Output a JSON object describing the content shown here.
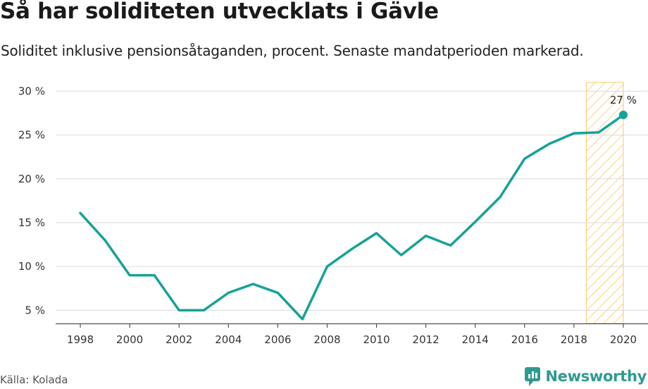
{
  "title": "Så har soliditeten utvecklats i Gävle",
  "subtitle": "Soliditet inklusive pensionsåtaganden, procent. Senaste mandatperioden markerad.",
  "source": "Källa: Kolada",
  "brand": "Newsworthy",
  "colors": {
    "line": "#16a295",
    "highlight": "#f5c96b",
    "grid": "#d9d9d9",
    "brand": "#2e9a90"
  },
  "chart_data": {
    "type": "line",
    "x": [
      1998,
      1999,
      2000,
      2001,
      2002,
      2003,
      2004,
      2005,
      2006,
      2007,
      2008,
      2009,
      2010,
      2011,
      2012,
      2013,
      2014,
      2015,
      2016,
      2017,
      2018,
      2019,
      2020
    ],
    "series": [
      {
        "values": [
          16.1,
          13,
          9,
          9,
          5,
          5,
          7,
          8,
          7,
          4,
          10,
          12,
          13.8,
          11.3,
          13.5,
          12.4,
          15.1,
          17.9,
          22.3,
          24,
          25.2,
          25.3,
          27.3
        ]
      }
    ],
    "xlim": [
      1997,
      2021
    ],
    "ylim": [
      3.5,
      31
    ],
    "y_ticks": [
      5,
      10,
      15,
      20,
      25,
      30
    ],
    "y_tick_labels": [
      "5 %",
      "10 %",
      "15 %",
      "20 %",
      "25 %",
      "30 %"
    ],
    "x_ticks": [
      1998,
      2000,
      2002,
      2004,
      2006,
      2008,
      2010,
      2012,
      2014,
      2016,
      2018,
      2020
    ],
    "x_tick_labels": [
      "1998",
      "2000",
      "2002",
      "2004",
      "2006",
      "2008",
      "2010",
      "2012",
      "2014",
      "2016",
      "2018",
      "2020"
    ],
    "highlight_range": [
      2018.5,
      2020
    ],
    "end_label": "27 %",
    "grid": true,
    "legend": "none"
  }
}
